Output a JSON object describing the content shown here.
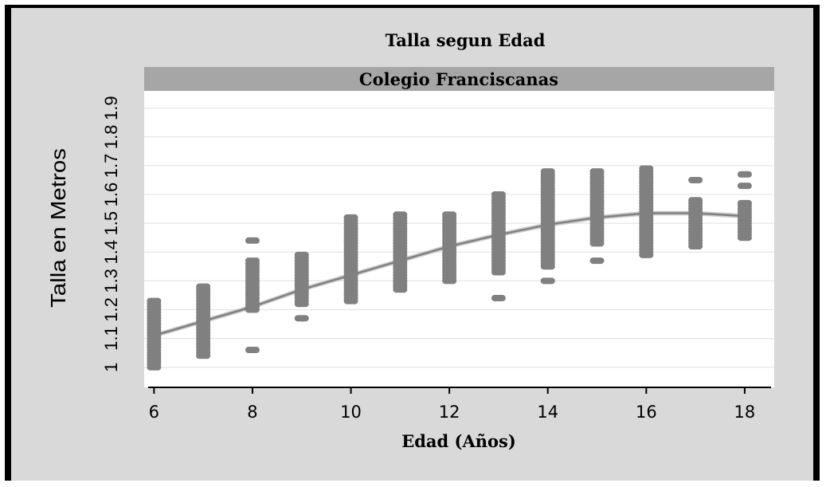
{
  "chart_data": {
    "type": "scatter",
    "title": "Talla segun Edad",
    "panel_label": "Colegio Franciscanas",
    "xlabel": "Edad (Años)",
    "ylabel": "Talla en Metros",
    "xlim": [
      5.8,
      18.6
    ],
    "ylim": [
      0.93,
      1.96
    ],
    "x_ticks": [
      6,
      8,
      10,
      12,
      14,
      16,
      18
    ],
    "y_ticks": [
      1,
      1.1,
      1.2,
      1.3,
      1.4,
      1.5,
      1.6,
      1.7,
      1.8,
      1.9
    ],
    "grid": true,
    "colors": {
      "points": "#808080",
      "smooth": "#808080",
      "band": "#bfbfbf",
      "panel_strip": "#a6a6a6",
      "background": "#d9d9d9"
    },
    "series": [
      {
        "points": [
          {
            "x": 6,
            "ymin": 1.0,
            "ymax": 1.23,
            "outliers": []
          },
          {
            "x": 7,
            "ymin": 1.04,
            "ymax": 1.28,
            "outliers": []
          },
          {
            "x": 8,
            "ymin": 1.2,
            "ymax": 1.37,
            "outliers": [
              1.06,
              1.44
            ]
          },
          {
            "x": 9,
            "ymin": 1.22,
            "ymax": 1.39,
            "outliers": [
              1.17
            ]
          },
          {
            "x": 10,
            "ymin": 1.23,
            "ymax": 1.52,
            "outliers": []
          },
          {
            "x": 11,
            "ymin": 1.27,
            "ymax": 1.53,
            "outliers": []
          },
          {
            "x": 12,
            "ymin": 1.3,
            "ymax": 1.53,
            "outliers": []
          },
          {
            "x": 13,
            "ymin": 1.33,
            "ymax": 1.6,
            "outliers": [
              1.24
            ]
          },
          {
            "x": 14,
            "ymin": 1.35,
            "ymax": 1.68,
            "outliers": [
              1.3
            ]
          },
          {
            "x": 15,
            "ymin": 1.43,
            "ymax": 1.68,
            "outliers": [
              1.37
            ]
          },
          {
            "x": 16,
            "ymin": 1.39,
            "ymax": 1.69,
            "outliers": []
          },
          {
            "x": 17,
            "ymin": 1.42,
            "ymax": 1.58,
            "outliers": [
              1.65
            ]
          },
          {
            "x": 18,
            "ymin": 1.45,
            "ymax": 1.57,
            "outliers": [
              1.63,
              1.67
            ]
          }
        ]
      }
    ],
    "smooth_curve": [
      {
        "x": 6,
        "y": 1.11
      },
      {
        "x": 7,
        "y": 1.16
      },
      {
        "x": 8,
        "y": 1.21
      },
      {
        "x": 9,
        "y": 1.27
      },
      {
        "x": 10,
        "y": 1.32
      },
      {
        "x": 11,
        "y": 1.37
      },
      {
        "x": 12,
        "y": 1.42
      },
      {
        "x": 13,
        "y": 1.46
      },
      {
        "x": 14,
        "y": 1.495
      },
      {
        "x": 15,
        "y": 1.52
      },
      {
        "x": 16,
        "y": 1.535
      },
      {
        "x": 17,
        "y": 1.535
      },
      {
        "x": 18,
        "y": 1.525
      }
    ]
  }
}
